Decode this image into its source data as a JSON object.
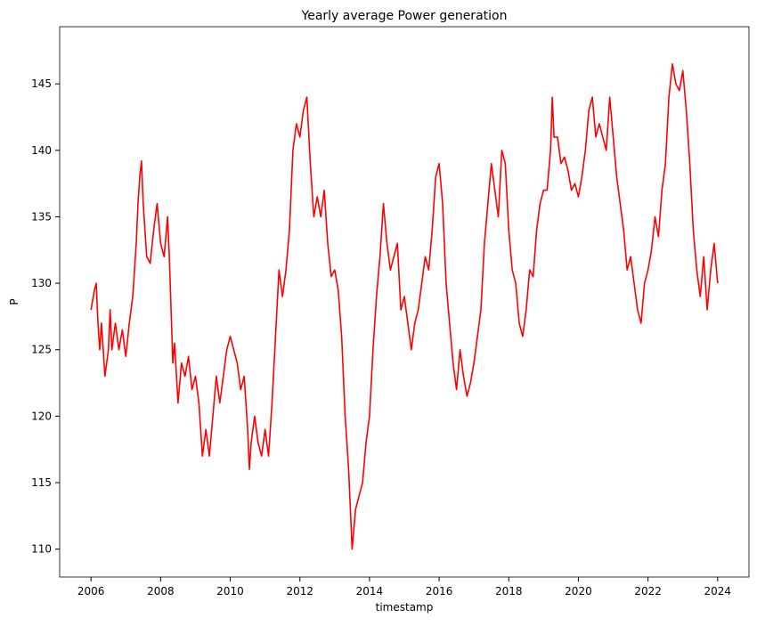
{
  "chart_data": {
    "type": "line",
    "title": "Yearly average Power generation",
    "x_label": "timestamp",
    "y_label": "P",
    "color": "#ff0000",
    "x": [
      2006.0,
      2006.1,
      2006.15,
      2006.2,
      2006.25,
      2006.3,
      2006.4,
      2006.5,
      2006.55,
      2006.6,
      2006.7,
      2006.8,
      2006.9,
      2007.0,
      2007.1,
      2007.2,
      2007.3,
      2007.35,
      2007.4,
      2007.45,
      2007.5,
      2007.6,
      2007.7,
      2007.8,
      2007.9,
      2008.0,
      2008.1,
      2008.2,
      2008.25,
      2008.3,
      2008.35,
      2008.4,
      2008.5,
      2008.6,
      2008.7,
      2008.8,
      2008.9,
      2009.0,
      2009.1,
      2009.2,
      2009.3,
      2009.4,
      2009.5,
      2009.6,
      2009.7,
      2009.8,
      2009.9,
      2010.0,
      2010.1,
      2010.2,
      2010.3,
      2010.4,
      2010.5,
      2010.55,
      2010.6,
      2010.7,
      2010.8,
      2010.9,
      2011.0,
      2011.1,
      2011.2,
      2011.3,
      2011.4,
      2011.5,
      2011.6,
      2011.7,
      2011.8,
      2011.9,
      2012.0,
      2012.1,
      2012.2,
      2012.3,
      2012.4,
      2012.5,
      2012.6,
      2012.7,
      2012.8,
      2012.9,
      2013.0,
      2013.1,
      2013.2,
      2013.3,
      2013.4,
      2013.5,
      2013.6,
      2013.7,
      2013.8,
      2013.9,
      2014.0,
      2014.1,
      2014.2,
      2014.3,
      2014.4,
      2014.5,
      2014.6,
      2014.7,
      2014.8,
      2014.9,
      2015.0,
      2015.1,
      2015.2,
      2015.3,
      2015.4,
      2015.5,
      2015.6,
      2015.7,
      2015.8,
      2015.9,
      2016.0,
      2016.1,
      2016.2,
      2016.3,
      2016.4,
      2016.5,
      2016.6,
      2016.7,
      2016.8,
      2016.9,
      2017.0,
      2017.1,
      2017.2,
      2017.3,
      2017.4,
      2017.5,
      2017.6,
      2017.7,
      2017.8,
      2017.9,
      2018.0,
      2018.1,
      2018.2,
      2018.3,
      2018.4,
      2018.5,
      2018.6,
      2018.7,
      2018.8,
      2018.9,
      2019.0,
      2019.1,
      2019.2,
      2019.25,
      2019.3,
      2019.4,
      2019.5,
      2019.6,
      2019.7,
      2019.8,
      2019.9,
      2020.0,
      2020.1,
      2020.2,
      2020.3,
      2020.4,
      2020.5,
      2020.6,
      2020.7,
      2020.8,
      2020.9,
      2021.0,
      2021.1,
      2021.2,
      2021.3,
      2021.4,
      2021.5,
      2021.6,
      2021.7,
      2021.8,
      2021.9,
      2022.0,
      2022.1,
      2022.2,
      2022.3,
      2022.4,
      2022.5,
      2022.6,
      2022.7,
      2022.8,
      2022.9,
      2023.0,
      2023.1,
      2023.2,
      2023.3,
      2023.4,
      2023.5,
      2023.6,
      2023.7,
      2023.8,
      2023.9,
      2024.0
    ],
    "values": [
      128,
      129.5,
      130,
      127,
      125,
      127,
      123,
      125,
      128,
      125,
      127,
      125,
      126.5,
      124.5,
      127,
      129,
      133,
      136,
      138,
      139.2,
      136,
      132,
      131.5,
      134,
      136,
      133,
      132,
      135,
      132,
      128,
      124,
      125.5,
      121,
      124,
      123,
      124.5,
      122,
      123,
      121,
      117,
      119,
      117,
      120,
      123,
      121,
      123,
      125,
      126,
      125,
      124,
      122,
      123,
      119,
      116,
      118,
      120,
      118,
      117,
      119,
      117,
      121,
      126,
      131,
      129,
      131,
      134,
      140,
      142,
      141,
      143,
      144,
      139,
      135,
      136.5,
      135,
      137,
      133,
      130.5,
      131,
      129.5,
      126,
      120,
      116,
      110,
      113,
      114,
      115,
      118,
      120,
      125,
      129,
      132,
      136,
      133,
      131,
      132,
      133,
      128,
      129,
      127,
      125,
      127,
      128,
      130,
      132,
      131,
      134,
      138,
      139,
      136,
      130,
      127,
      124,
      122,
      125,
      123,
      121.5,
      122.5,
      124,
      126,
      128,
      133,
      136,
      139,
      137,
      135,
      140,
      139,
      134,
      131,
      130,
      127,
      126,
      128,
      131,
      130.5,
      134,
      136,
      137,
      137,
      140,
      144,
      141,
      141,
      139,
      139.5,
      138.5,
      137,
      137.5,
      136.5,
      138,
      140,
      143,
      144,
      141,
      142,
      141,
      140,
      144,
      141,
      138,
      136,
      134,
      131,
      132,
      130,
      128,
      127,
      130,
      131,
      132.5,
      135,
      133.5,
      137,
      139,
      144,
      146.5,
      145,
      144.5,
      146,
      143,
      139,
      134,
      131,
      129,
      132,
      128,
      131,
      133,
      130
    ],
    "xlim": [
      2005.1,
      2024.9
    ],
    "xticks": [
      2006,
      2008,
      2010,
      2012,
      2014,
      2016,
      2018,
      2020,
      2022,
      2024
    ],
    "ylim": [
      107.9,
      149.3
    ],
    "yticks": [
      110,
      115,
      120,
      125,
      130,
      135,
      140,
      145
    ]
  }
}
